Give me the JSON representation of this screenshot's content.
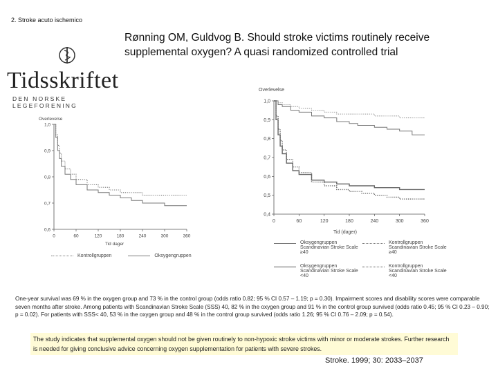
{
  "slide": {
    "label": "2. Stroke acuto ischemico",
    "citation_title": "Rønning OM, Guldvog B. Should stroke victims routinely receive supplemental oxygen? A quasi randomized controlled trial",
    "journal_ref": "Stroke. 1999; 30: 2033–2037"
  },
  "logo": {
    "word": "Tidsskriftet",
    "subtitle": "DEN NORSKE LEGEFORENING"
  },
  "text": {
    "results": "One-year survival was 69 % in the oxygen group and 73 % in the control group (odds ratio 0.82; 95 % CI 0.57 – 1.19; p = 0.30). Impairment scores and disability scores were comparable seven months after stroke. Among patients with Scandinavian Stroke Scale (SSS) 40, 82 % in the oxygen group and 91 % in the control group survived (odds ratio 0.45; 95 % CI 0.23 – 0.90; p = 0.02). For patients with SSS< 40, 53 % in the oxygen group and 48 % in the control group survived (odds ratio 1.26; 95 % CI 0.76 – 2.09; p = 0.54).",
    "conclusion": "The study indicates that supplemental oxygen should not be given routinely to non-hypoxic stroke victims with minor or moderate strokes. Further research is needed for giving conclusive advice concerning oxygen supplementation for patients with severe strokes."
  },
  "chart_data": [
    {
      "type": "line",
      "ylabel": "Overlevelse",
      "xlabel": "Tid dager",
      "x_ticks": [
        0,
        60,
        120,
        180,
        240,
        300,
        360
      ],
      "y_ticks": [
        "1,0",
        "0,9",
        "0,8",
        "0,7",
        "0,6"
      ],
      "ylim": [
        0.6,
        1.0
      ],
      "xlim": [
        0,
        360
      ],
      "series": [
        {
          "name": "Kontrollgruppen",
          "style": "dotted",
          "x": [
            0,
            5,
            10,
            15,
            20,
            30,
            45,
            60,
            90,
            120,
            150,
            180,
            210,
            240,
            270,
            300,
            330,
            360
          ],
          "y": [
            1.0,
            0.96,
            0.92,
            0.89,
            0.86,
            0.83,
            0.81,
            0.79,
            0.77,
            0.76,
            0.75,
            0.74,
            0.74,
            0.73,
            0.73,
            0.73,
            0.73,
            0.73
          ]
        },
        {
          "name": "Oksygengruppen",
          "style": "solid",
          "x": [
            0,
            5,
            10,
            15,
            20,
            30,
            45,
            60,
            90,
            120,
            150,
            180,
            210,
            240,
            270,
            300,
            330,
            360
          ],
          "y": [
            1.0,
            0.95,
            0.9,
            0.87,
            0.84,
            0.81,
            0.79,
            0.77,
            0.75,
            0.74,
            0.73,
            0.72,
            0.71,
            0.7,
            0.7,
            0.69,
            0.69,
            0.69
          ]
        }
      ]
    },
    {
      "type": "line",
      "ylabel": "Overlevelse",
      "xlabel": "Tid (dager)",
      "x_ticks": [
        0,
        60,
        120,
        180,
        240,
        300,
        360
      ],
      "y_ticks": [
        "1,0",
        "0,9",
        "0,8",
        "0,7",
        "0,6",
        "0,5",
        "0,4"
      ],
      "ylim": [
        0.4,
        1.0
      ],
      "xlim": [
        0,
        360
      ],
      "series": [
        {
          "name": "Oksygengruppen Scandinavian Stroke Scale ≥40",
          "style": "solid-thin",
          "x": [
            0,
            10,
            20,
            40,
            60,
            90,
            120,
            150,
            180,
            200,
            240,
            270,
            300,
            330,
            360
          ],
          "y": [
            1.0,
            0.98,
            0.97,
            0.95,
            0.94,
            0.92,
            0.91,
            0.89,
            0.88,
            0.87,
            0.86,
            0.85,
            0.84,
            0.82,
            0.82
          ]
        },
        {
          "name": "Kontrollgruppen Scandinavian Stroke Scale ≥40",
          "style": "dotted-thin",
          "x": [
            0,
            10,
            20,
            40,
            60,
            90,
            120,
            150,
            180,
            240,
            270,
            300,
            330,
            360
          ],
          "y": [
            1.0,
            0.99,
            0.98,
            0.97,
            0.96,
            0.95,
            0.94,
            0.93,
            0.93,
            0.92,
            0.92,
            0.91,
            0.91,
            0.91
          ]
        },
        {
          "name": "Oksygengruppen Scandinavian Stroke Scale <40",
          "style": "solid-thick",
          "x": [
            0,
            5,
            10,
            15,
            20,
            30,
            45,
            60,
            90,
            120,
            150,
            180,
            210,
            240,
            270,
            300,
            330,
            360
          ],
          "y": [
            1.0,
            0.9,
            0.82,
            0.76,
            0.72,
            0.67,
            0.63,
            0.61,
            0.58,
            0.57,
            0.56,
            0.55,
            0.55,
            0.54,
            0.54,
            0.53,
            0.53,
            0.53
          ]
        },
        {
          "name": "Kontrollgruppen Scandinavian Stroke Scale <40",
          "style": "dotted-thick",
          "x": [
            0,
            5,
            10,
            15,
            20,
            30,
            45,
            60,
            90,
            120,
            150,
            180,
            210,
            240,
            270,
            300,
            330,
            360
          ],
          "y": [
            1.0,
            0.92,
            0.85,
            0.79,
            0.74,
            0.69,
            0.65,
            0.62,
            0.57,
            0.55,
            0.53,
            0.52,
            0.51,
            0.5,
            0.49,
            0.48,
            0.48,
            0.48
          ]
        }
      ]
    }
  ]
}
